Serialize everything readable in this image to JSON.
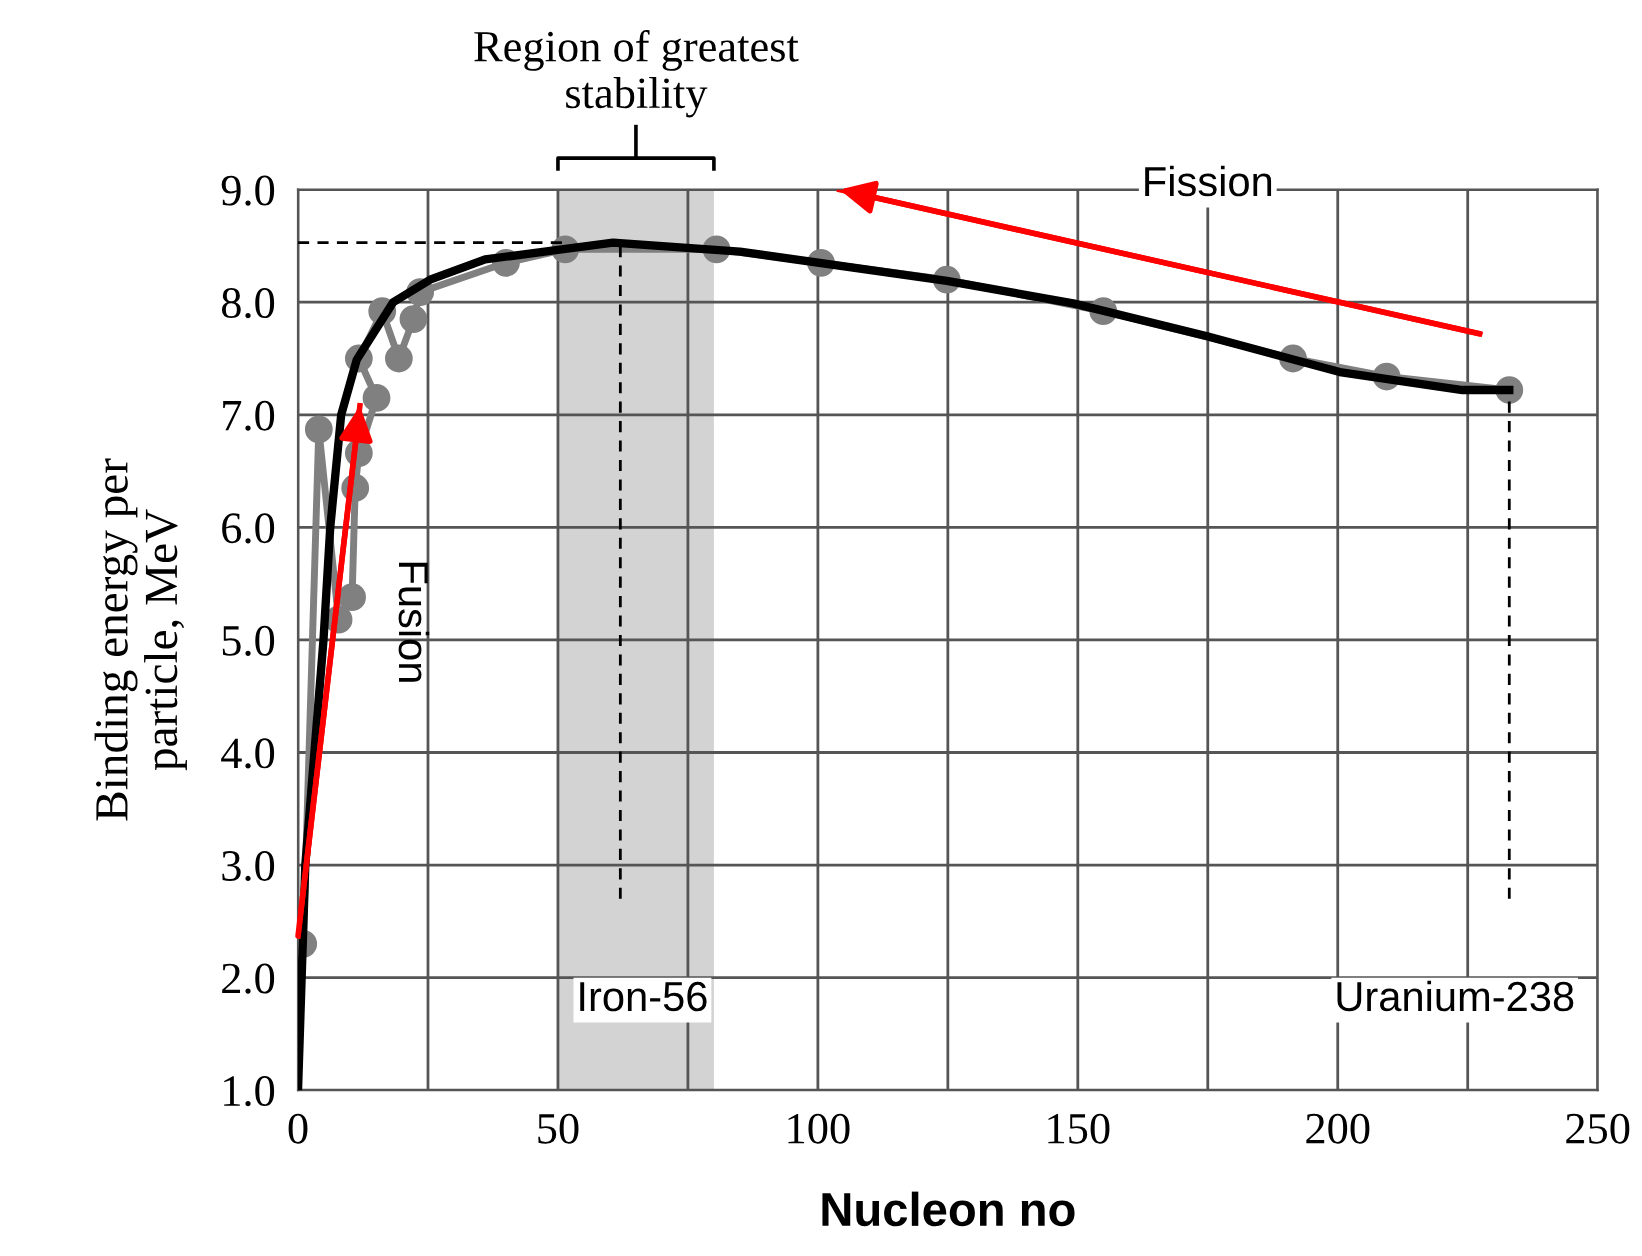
{
  "chart_data": {
    "type": "line",
    "xlabel": "Nucleon no",
    "ylabel": "Binding energy per\nparticle, MeV",
    "xlim": [
      0,
      250
    ],
    "ylim": [
      1.0,
      9.0
    ],
    "xticks": [
      0,
      {
        "value": 25,
        "label": null
      },
      50,
      {
        "value": 75,
        "label": null
      },
      100,
      {
        "value": 125,
        "label": null
      },
      150,
      {
        "value": 175,
        "label": null
      },
      200,
      {
        "value": 225,
        "label": null
      },
      250
    ],
    "yticks": [
      {
        "value": 1,
        "label": "1.0"
      },
      {
        "value": 2,
        "label": "2.0"
      },
      {
        "value": 3,
        "label": "3.0"
      },
      {
        "value": 4,
        "label": "4.0"
      },
      {
        "value": 5,
        "label": "5.0"
      },
      {
        "value": 6,
        "label": "6.0"
      },
      {
        "value": 7,
        "label": "7.0"
      },
      {
        "value": 8,
        "label": "8.0"
      },
      {
        "value": 9,
        "label": "9.0"
      }
    ],
    "grid": true,
    "legend": false,
    "series": [
      {
        "color": "#808080",
        "marker": "circle",
        "x": [
          1,
          4,
          7.8,
          10.4,
          11,
          11.7,
          15.1,
          11.7,
          16.2,
          19.4,
          22.2,
          23.5,
          40,
          51.4,
          80.5,
          100.6,
          124.8,
          154.9,
          191.4,
          209.4,
          233
        ],
        "values": [
          2.3,
          6.87,
          5.18,
          5.38,
          6.35,
          6.66,
          7.15,
          7.5,
          7.92,
          7.5,
          7.85,
          8.09,
          8.35,
          8.47,
          8.47,
          8.35,
          8.2,
          7.92,
          7.5,
          7.34,
          7.22
        ]
      },
      {
        "color": "#000000",
        "x": [
          0,
          1.4,
          4.9,
          6.2,
          8.3,
          11.3,
          18.3,
          25.4,
          36,
          60.6,
          85,
          124.8,
          149.1,
          174.7,
          200.4,
          224,
          233
        ],
        "values": [
          1.0,
          3.0,
          5.0,
          6.0,
          7.0,
          7.49,
          8.0,
          8.2,
          8.38,
          8.53,
          8.45,
          8.19,
          7.99,
          7.7,
          7.38,
          7.22,
          7.22
        ]
      },
      {
        "color": "#ff0000",
        "x": [
          0,
          11.9
        ],
        "values": [
          2.37,
          7.08
        ]
      },
      {
        "color": "#ff0000",
        "x": [
          227.3,
          104.2
        ],
        "values": [
          7.72,
          9.0
        ]
      },
      {
        "color": "#000000",
        "line_style": "dashed",
        "x": [
          0,
          51.4
        ],
        "values": [
          8.53,
          8.53
        ]
      },
      {
        "color": "#000000",
        "line_style": "dashed",
        "x": [
          62,
          62
        ],
        "values": [
          2.7,
          8.53
        ]
      },
      {
        "color": "#000000",
        "line_style": "dashed",
        "x": [
          233,
          233
        ],
        "values": [
          2.7,
          7.22
        ]
      }
    ],
    "bands": [
      {
        "axis": "x",
        "from": 50,
        "to": 80,
        "label": "Region of greatest\nstability",
        "color": "#d3d3d3"
      }
    ],
    "annotations": [
      "Fusion",
      "Fission",
      "Iron-56",
      "Uranium-238"
    ]
  }
}
